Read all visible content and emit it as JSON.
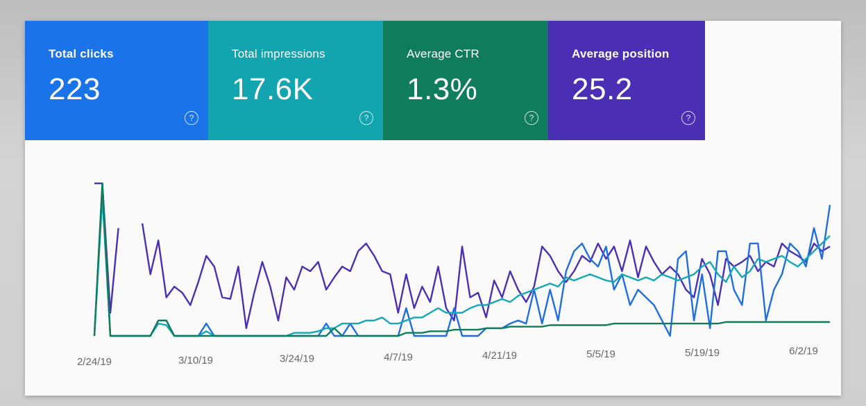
{
  "metrics": {
    "clicks": {
      "label": "Total clicks",
      "value": "223",
      "help": "?",
      "color": "#1a73e8"
    },
    "impressions": {
      "label": "Total impressions",
      "value": "17.6K",
      "help": "?",
      "color": "#12a4af"
    },
    "ctr": {
      "label": "Average CTR",
      "value": "1.3%",
      "help": "?",
      "color": "#0f7d5b"
    },
    "position": {
      "label": "Average position",
      "value": "25.2",
      "help": "?",
      "color": "#4a2fb4"
    }
  },
  "chart_data": {
    "type": "line",
    "x_ticks": [
      "2/24/19",
      "3/10/19",
      "3/24/19",
      "4/7/19",
      "4/21/19",
      "5/5/19",
      "5/19/19",
      "6/2/19"
    ],
    "grid": false,
    "legend": "none",
    "series": [
      {
        "color": "#4a2fb4",
        "values": [
          99,
          99,
          15,
          70,
          null,
          null,
          73,
          40,
          62,
          25,
          32,
          28,
          20,
          35,
          52,
          45,
          25,
          24,
          45,
          5,
          28,
          48,
          32,
          10,
          38,
          30,
          45,
          42,
          48,
          30,
          38,
          45,
          42,
          55,
          60,
          52,
          42,
          40,
          15,
          40,
          18,
          32,
          22,
          45,
          18,
          10,
          58,
          25,
          28,
          12,
          36,
          25,
          42,
          30,
          22,
          32,
          58,
          52,
          42,
          35,
          42,
          52,
          48,
          60,
          50,
          58,
          42,
          62,
          38,
          58,
          48,
          40,
          45,
          40,
          30,
          25,
          50,
          40,
          20,
          50,
          45,
          48,
          52,
          42,
          48,
          45,
          60,
          55,
          52,
          48,
          60,
          55,
          58
        ]
      },
      {
        "color": "#1e6ee0",
        "values": [
          0,
          99,
          0,
          0,
          0,
          0,
          0,
          0,
          10,
          10,
          0,
          0,
          0,
          0,
          8,
          0,
          0,
          0,
          0,
          0,
          0,
          0,
          0,
          0,
          0,
          0,
          0,
          0,
          0,
          8,
          0,
          0,
          8,
          0,
          0,
          0,
          0,
          0,
          0,
          18,
          0,
          0,
          0,
          0,
          0,
          18,
          0,
          0,
          0,
          5,
          5,
          5,
          8,
          10,
          8,
          30,
          8,
          30,
          10,
          42,
          55,
          60,
          50,
          45,
          58,
          30,
          40,
          20,
          30,
          25,
          20,
          10,
          0,
          50,
          55,
          10,
          40,
          5,
          55,
          55,
          30,
          20,
          60,
          60,
          10,
          30,
          40,
          60,
          55,
          45,
          70,
          50,
          85
        ]
      },
      {
        "color": "#14a7b5",
        "values": [
          0,
          90,
          0,
          0,
          0,
          0,
          0,
          0,
          8,
          7,
          0,
          0,
          0,
          0,
          3,
          0,
          0,
          0,
          0,
          0,
          0,
          0,
          0,
          0,
          0,
          2,
          2,
          2,
          3,
          5,
          5,
          8,
          8,
          8,
          10,
          10,
          12,
          8,
          8,
          10,
          12,
          12,
          15,
          18,
          15,
          15,
          15,
          18,
          20,
          20,
          22,
          24,
          22,
          26,
          28,
          30,
          32,
          34,
          32,
          38,
          36,
          38,
          40,
          38,
          36,
          35,
          40,
          38,
          36,
          38,
          36,
          40,
          38,
          36,
          38,
          40,
          45,
          48,
          40,
          35,
          45,
          38,
          42,
          50,
          48,
          50,
          52,
          48,
          45,
          50,
          55,
          60,
          65
        ]
      },
      {
        "color": "#0f7d5b",
        "values": [
          0,
          99,
          0,
          0,
          0,
          0,
          0,
          0,
          10,
          10,
          0,
          0,
          0,
          0,
          0,
          0,
          0,
          0,
          0,
          0,
          0,
          0,
          0,
          0,
          0,
          0,
          0,
          0,
          0,
          0,
          5,
          0,
          0,
          0,
          0,
          0,
          0,
          0,
          0,
          2,
          2,
          2,
          3,
          3,
          3,
          4,
          4,
          4,
          4,
          5,
          5,
          5,
          6,
          6,
          6,
          6,
          6,
          7,
          7,
          7,
          7,
          7,
          7,
          7,
          7,
          8,
          8,
          8,
          8,
          8,
          8,
          8,
          8,
          8,
          8,
          8,
          8,
          8,
          8,
          9,
          9,
          9,
          9,
          9,
          9,
          9,
          9,
          9,
          9,
          9,
          9,
          9,
          9
        ]
      }
    ]
  }
}
